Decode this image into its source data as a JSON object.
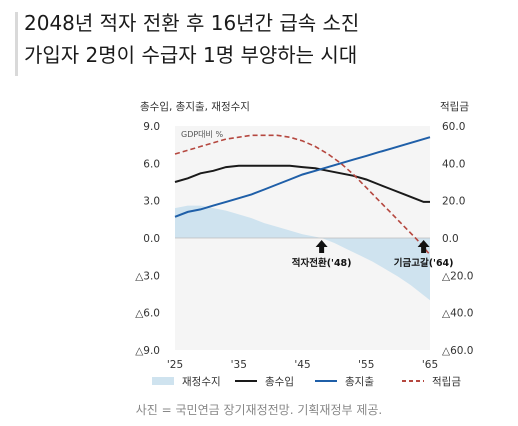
{
  "headline": {
    "line1": "2048년 적자 전환 후 16년간 급속 소진",
    "line2": "가입자 2명이 수급자 1명 부양하는 시대"
  },
  "caption": "사진 = 국민연금 장기재정전망. 기획재정부 제공.",
  "chart_data": {
    "type": "line",
    "left_axis_title": "총수입, 총지출, 재정수지",
    "right_axis_title": "적립금",
    "unit_label": "GDP대비 %",
    "x_ticks": [
      "'25",
      "'35",
      "'45",
      "'55",
      "'65"
    ],
    "x_range": [
      2025,
      2065
    ],
    "y_left_ticks": [
      "9.0",
      "6.0",
      "3.0",
      "0.0",
      "△3.0",
      "△6.0",
      "△9.0"
    ],
    "y_left_range": [
      -9,
      9
    ],
    "y_right_ticks": [
      "60.0",
      "40.0",
      "20.0",
      "0.0",
      "△20.0",
      "△40.0",
      "△60.0"
    ],
    "y_right_range": [
      -60,
      60
    ],
    "annotations": [
      {
        "label": "적자전환('48)",
        "x": 2048
      },
      {
        "label": "기금고갈('64)",
        "x": 2064
      }
    ],
    "legend": [
      "재정수지",
      "총수입",
      "총지출",
      "적립금"
    ],
    "series": [
      {
        "name": "재정수지",
        "kind": "area",
        "axis": "left",
        "color": "#cfe3ef",
        "x": [
          2025,
          2027,
          2029,
          2031,
          2033,
          2035,
          2037,
          2039,
          2041,
          2043,
          2045,
          2047,
          2048,
          2050,
          2052,
          2054,
          2056,
          2058,
          2060,
          2062,
          2064,
          2065
        ],
        "y": [
          2.4,
          2.6,
          2.6,
          2.4,
          2.2,
          1.9,
          1.6,
          1.2,
          0.9,
          0.6,
          0.3,
          0.1,
          0.0,
          -0.4,
          -0.9,
          -1.4,
          -1.9,
          -2.5,
          -3.1,
          -3.8,
          -4.6,
          -5.0
        ]
      },
      {
        "name": "총수입",
        "kind": "line",
        "axis": "left",
        "color": "#1a1a1a",
        "x": [
          2025,
          2027,
          2029,
          2031,
          2033,
          2035,
          2037,
          2039,
          2041,
          2043,
          2045,
          2047,
          2049,
          2051,
          2053,
          2055,
          2057,
          2059,
          2061,
          2063,
          2064,
          2065
        ],
        "y": [
          4.5,
          4.8,
          5.2,
          5.4,
          5.7,
          5.8,
          5.8,
          5.8,
          5.8,
          5.8,
          5.7,
          5.6,
          5.4,
          5.2,
          5.0,
          4.7,
          4.3,
          3.9,
          3.5,
          3.1,
          2.9,
          2.9
        ]
      },
      {
        "name": "총지출",
        "kind": "line",
        "axis": "left",
        "color": "#1f5fa8",
        "x": [
          2025,
          2027,
          2029,
          2031,
          2033,
          2035,
          2037,
          2039,
          2041,
          2043,
          2045,
          2047,
          2049,
          2051,
          2053,
          2055,
          2057,
          2059,
          2061,
          2063,
          2065
        ],
        "y": [
          1.7,
          2.1,
          2.3,
          2.6,
          2.9,
          3.2,
          3.5,
          3.9,
          4.3,
          4.7,
          5.1,
          5.4,
          5.7,
          6.0,
          6.3,
          6.6,
          6.9,
          7.2,
          7.5,
          7.8,
          8.1
        ]
      },
      {
        "name": "적립금",
        "kind": "dashed",
        "axis": "right",
        "color": "#b5473f",
        "x": [
          2025,
          2027,
          2029,
          2031,
          2033,
          2035,
          2037,
          2039,
          2041,
          2043,
          2045,
          2047,
          2049,
          2051,
          2053,
          2055,
          2057,
          2059,
          2061,
          2063,
          2064,
          2065
        ],
        "y": [
          45,
          47,
          49,
          51,
          53,
          54,
          55,
          55,
          55,
          54,
          52,
          49,
          45,
          40,
          34,
          27,
          20,
          13,
          6,
          -1,
          -5,
          -9
        ]
      }
    ]
  }
}
